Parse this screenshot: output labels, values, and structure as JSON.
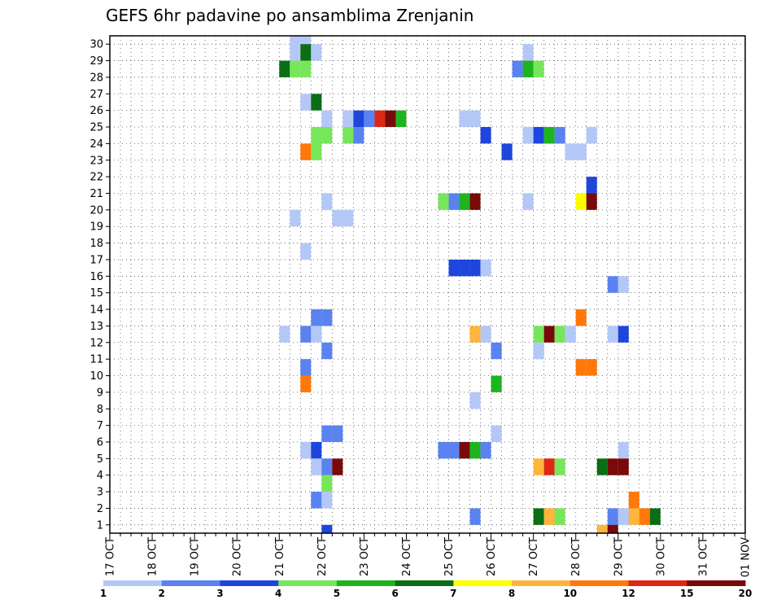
{
  "chart_data": {
    "type": "heatmap",
    "title": "GEFS 6hr padavine po ansamblima Zrenjanin",
    "xlabel": "",
    "ylabel": "",
    "x_tick_labels": [
      "17 OCT",
      "18 OCT",
      "19 OCT",
      "20 OCT",
      "21 OCT",
      "22 OCT",
      "23 OCT",
      "24 OCT",
      "25 OCT",
      "26 OCT",
      "27 OCT",
      "28 OCT",
      "29 OCT",
      "30 OCT",
      "31 OCT",
      "01 NOV"
    ],
    "y_tick_labels": [
      "1",
      "2",
      "3",
      "4",
      "5",
      "6",
      "7",
      "8",
      "9",
      "10",
      "11",
      "12",
      "13",
      "14",
      "15",
      "16",
      "17",
      "18",
      "19",
      "20",
      "21",
      "22",
      "23",
      "24",
      "25",
      "26",
      "27",
      "28",
      "29",
      "30"
    ],
    "grid": true,
    "legend": {
      "position": "bottom",
      "colors": [
        "#b4c8f8",
        "#5a82f0",
        "#1e46dc",
        "#78e65a",
        "#1eb41e",
        "#0a6e14",
        "#ffff00",
        "#ffb43c",
        "#ff780a",
        "#dc2814",
        "#780a0a"
      ],
      "labels": [
        "1",
        "2",
        "3",
        "4",
        "5",
        "6",
        "7",
        "8",
        "10",
        "12",
        "15",
        "20"
      ]
    },
    "x_unit": "6-hour step from 17 OCT 00Z",
    "y_unit": "ensemble member",
    "cells": [
      [
        17,
        30,
        1
      ],
      [
        18,
        30,
        1
      ],
      [
        17,
        29,
        1
      ],
      [
        18,
        29,
        6
      ],
      [
        19,
        29,
        1
      ],
      [
        39,
        29,
        1
      ],
      [
        16,
        28,
        6
      ],
      [
        17,
        28,
        4
      ],
      [
        18,
        28,
        4
      ],
      [
        38,
        28,
        2
      ],
      [
        39,
        28,
        5
      ],
      [
        40,
        28,
        4
      ],
      [
        18,
        26,
        1
      ],
      [
        19,
        26,
        6
      ],
      [
        20,
        25,
        1
      ],
      [
        22,
        25,
        1
      ],
      [
        23,
        25,
        3
      ],
      [
        24,
        25,
        2
      ],
      [
        25,
        25,
        12
      ],
      [
        26,
        25,
        20
      ],
      [
        27,
        25,
        5
      ],
      [
        33,
        25,
        1
      ],
      [
        34,
        25,
        1
      ],
      [
        19,
        24,
        4
      ],
      [
        20,
        24,
        4
      ],
      [
        22,
        24,
        4
      ],
      [
        23,
        24,
        2
      ],
      [
        35,
        24,
        3
      ],
      [
        39,
        24,
        1
      ],
      [
        40,
        24,
        3
      ],
      [
        41,
        24,
        5
      ],
      [
        42,
        24,
        2
      ],
      [
        45,
        24,
        1
      ],
      [
        18,
        23,
        10
      ],
      [
        19,
        23,
        4
      ],
      [
        37,
        23,
        3
      ],
      [
        43,
        23,
        1
      ],
      [
        44,
        23,
        1
      ],
      [
        45,
        21,
        3
      ],
      [
        20,
        20,
        1
      ],
      [
        31,
        20,
        4
      ],
      [
        32,
        20,
        2
      ],
      [
        33,
        20,
        5
      ],
      [
        34,
        20,
        15
      ],
      [
        39,
        20,
        1
      ],
      [
        44,
        20,
        7
      ],
      [
        45,
        20,
        20
      ],
      [
        17,
        19,
        1
      ],
      [
        21,
        19,
        1
      ],
      [
        22,
        19,
        1
      ],
      [
        18,
        17,
        1
      ],
      [
        32,
        16,
        3
      ],
      [
        33,
        16,
        3
      ],
      [
        34,
        16,
        3
      ],
      [
        35,
        16,
        1
      ],
      [
        47,
        15,
        2
      ],
      [
        48,
        15,
        1
      ],
      [
        19,
        13,
        2
      ],
      [
        20,
        13,
        2
      ],
      [
        44,
        13,
        10
      ],
      [
        16,
        12,
        1
      ],
      [
        18,
        12,
        2
      ],
      [
        19,
        12,
        1
      ],
      [
        34,
        12,
        8
      ],
      [
        35,
        12,
        1
      ],
      [
        40,
        12,
        4
      ],
      [
        41,
        12,
        20
      ],
      [
        42,
        12,
        4
      ],
      [
        43,
        12,
        1
      ],
      [
        47,
        12,
        1
      ],
      [
        48,
        12,
        3
      ],
      [
        20,
        11,
        2
      ],
      [
        36,
        11,
        2
      ],
      [
        40,
        11,
        1
      ],
      [
        18,
        10,
        2
      ],
      [
        44,
        10,
        10
      ],
      [
        45,
        10,
        10
      ],
      [
        18,
        9,
        10
      ],
      [
        36,
        9,
        5
      ],
      [
        34,
        8,
        1
      ],
      [
        20,
        6,
        2
      ],
      [
        21,
        6,
        2
      ],
      [
        36,
        6,
        1
      ],
      [
        18,
        5,
        1
      ],
      [
        19,
        5,
        3
      ],
      [
        31,
        5,
        2
      ],
      [
        32,
        5,
        2
      ],
      [
        33,
        5,
        15
      ],
      [
        34,
        5,
        5
      ],
      [
        35,
        5,
        2
      ],
      [
        48,
        5,
        1
      ],
      [
        19,
        4,
        1
      ],
      [
        20,
        4,
        2
      ],
      [
        21,
        4,
        15
      ],
      [
        40,
        4,
        8
      ],
      [
        41,
        4,
        12
      ],
      [
        42,
        4,
        4
      ],
      [
        46,
        4,
        6
      ],
      [
        47,
        4,
        15
      ],
      [
        48,
        4,
        20
      ],
      [
        20,
        3,
        4
      ],
      [
        19,
        2,
        2
      ],
      [
        20,
        2,
        1
      ],
      [
        49,
        2,
        10
      ],
      [
        34,
        1,
        2
      ],
      [
        40,
        1,
        6
      ],
      [
        41,
        1,
        8
      ],
      [
        42,
        1,
        4
      ],
      [
        47,
        1,
        2
      ],
      [
        48,
        1,
        1
      ],
      [
        49,
        1,
        8
      ],
      [
        50,
        1,
        10
      ],
      [
        51,
        1,
        6
      ],
      [
        20,
        0,
        3
      ],
      [
        46,
        0,
        8
      ],
      [
        47,
        0,
        20
      ]
    ]
  }
}
